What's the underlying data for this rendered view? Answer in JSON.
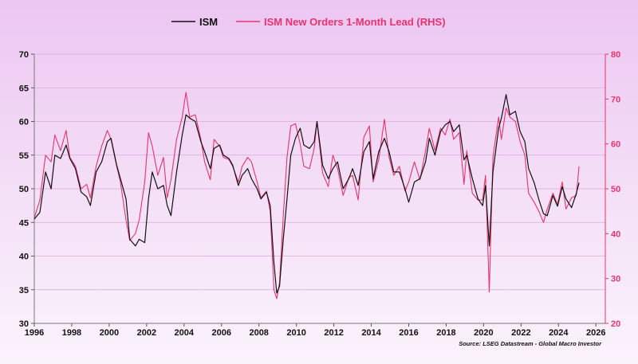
{
  "chart_data": {
    "type": "line",
    "title": "",
    "legend": {
      "position": "top-center"
    },
    "grid": true,
    "x_axis": {
      "range": [
        1996,
        2026.5
      ],
      "ticks": [
        "1996",
        "1998",
        "2000",
        "2002",
        "2004",
        "2006",
        "2008",
        "2010",
        "2012",
        "2014",
        "2016",
        "2018",
        "2020",
        "2022",
        "2024",
        "2026"
      ]
    },
    "y_left": {
      "range": [
        30,
        70
      ],
      "ticks": [
        "30",
        "35",
        "40",
        "45",
        "50",
        "55",
        "60",
        "65",
        "70"
      ],
      "color": "#111111"
    },
    "y_right": {
      "range": [
        20,
        80
      ],
      "ticks": [
        "20",
        "30",
        "40",
        "50",
        "60",
        "70",
        "80"
      ],
      "color": "#e8336d"
    },
    "series": [
      {
        "name": "ISM",
        "axis": "left",
        "color": "#111111",
        "points": [
          [
            1996.0,
            45.5
          ],
          [
            1996.3,
            46.5
          ],
          [
            1996.6,
            52.5
          ],
          [
            1996.9,
            50.0
          ],
          [
            1997.1,
            55.0
          ],
          [
            1997.4,
            54.5
          ],
          [
            1997.7,
            56.5
          ],
          [
            1997.9,
            54.5
          ],
          [
            1998.2,
            53.0
          ],
          [
            1998.5,
            49.5
          ],
          [
            1998.8,
            48.8
          ],
          [
            1999.0,
            47.5
          ],
          [
            1999.3,
            52.5
          ],
          [
            1999.6,
            54.0
          ],
          [
            1999.9,
            57.0
          ],
          [
            2000.1,
            57.5
          ],
          [
            2000.4,
            53.5
          ],
          [
            2000.6,
            51.5
          ],
          [
            2000.9,
            48.5
          ],
          [
            2001.1,
            42.5
          ],
          [
            2001.4,
            41.5
          ],
          [
            2001.6,
            42.5
          ],
          [
            2001.9,
            42.0
          ],
          [
            2002.1,
            48.5
          ],
          [
            2002.3,
            52.5
          ],
          [
            2002.6,
            50.0
          ],
          [
            2002.9,
            50.5
          ],
          [
            2003.1,
            47.5
          ],
          [
            2003.3,
            46.0
          ],
          [
            2003.6,
            52.5
          ],
          [
            2003.9,
            58.0
          ],
          [
            2004.1,
            61.0
          ],
          [
            2004.3,
            60.5
          ],
          [
            2004.6,
            60.0
          ],
          [
            2004.9,
            57.0
          ],
          [
            2005.1,
            55.5
          ],
          [
            2005.4,
            53.0
          ],
          [
            2005.6,
            56.0
          ],
          [
            2005.9,
            56.5
          ],
          [
            2006.1,
            55.0
          ],
          [
            2006.4,
            54.5
          ],
          [
            2006.6,
            53.5
          ],
          [
            2006.9,
            50.5
          ],
          [
            2007.1,
            52.0
          ],
          [
            2007.4,
            53.0
          ],
          [
            2007.6,
            51.5
          ],
          [
            2007.9,
            50.0
          ],
          [
            2008.1,
            48.5
          ],
          [
            2008.4,
            49.5
          ],
          [
            2008.6,
            47.5
          ],
          [
            2008.8,
            39.0
          ],
          [
            2008.95,
            34.5
          ],
          [
            2009.1,
            35.5
          ],
          [
            2009.3,
            42.5
          ],
          [
            2009.5,
            48.5
          ],
          [
            2009.7,
            55.0
          ],
          [
            2009.95,
            57.5
          ],
          [
            2010.2,
            59.0
          ],
          [
            2010.4,
            56.5
          ],
          [
            2010.7,
            56.0
          ],
          [
            2010.95,
            57.0
          ],
          [
            2011.1,
            60.0
          ],
          [
            2011.4,
            53.5
          ],
          [
            2011.7,
            51.5
          ],
          [
            2011.95,
            53.0
          ],
          [
            2012.2,
            54.0
          ],
          [
            2012.5,
            50.0
          ],
          [
            2012.8,
            51.5
          ],
          [
            2013.0,
            53.0
          ],
          [
            2013.3,
            50.5
          ],
          [
            2013.6,
            55.5
          ],
          [
            2013.9,
            57.0
          ],
          [
            2014.1,
            51.5
          ],
          [
            2014.4,
            55.5
          ],
          [
            2014.7,
            57.5
          ],
          [
            2014.95,
            55.5
          ],
          [
            2015.2,
            52.5
          ],
          [
            2015.5,
            52.5
          ],
          [
            2015.8,
            50.0
          ],
          [
            2016.0,
            48.0
          ],
          [
            2016.3,
            51.0
          ],
          [
            2016.6,
            51.5
          ],
          [
            2016.9,
            54.0
          ],
          [
            2017.1,
            57.5
          ],
          [
            2017.4,
            55.0
          ],
          [
            2017.7,
            58.5
          ],
          [
            2017.95,
            59.5
          ],
          [
            2018.2,
            60.0
          ],
          [
            2018.4,
            58.5
          ],
          [
            2018.7,
            59.5
          ],
          [
            2018.95,
            54.3
          ],
          [
            2019.1,
            55.0
          ],
          [
            2019.4,
            51.5
          ],
          [
            2019.7,
            48.5
          ],
          [
            2019.95,
            47.5
          ],
          [
            2020.1,
            50.5
          ],
          [
            2020.3,
            41.5
          ],
          [
            2020.5,
            52.5
          ],
          [
            2020.8,
            59.0
          ],
          [
            2020.95,
            60.5
          ],
          [
            2021.2,
            64.0
          ],
          [
            2021.4,
            61.0
          ],
          [
            2021.7,
            61.5
          ],
          [
            2021.95,
            58.5
          ],
          [
            2022.2,
            57.0
          ],
          [
            2022.4,
            53.0
          ],
          [
            2022.7,
            50.9
          ],
          [
            2022.95,
            48.4
          ],
          [
            2023.2,
            46.3
          ],
          [
            2023.4,
            46.0
          ],
          [
            2023.7,
            49.0
          ],
          [
            2023.95,
            47.4
          ],
          [
            2024.2,
            50.3
          ],
          [
            2024.4,
            48.5
          ],
          [
            2024.7,
            47.2
          ],
          [
            2024.95,
            49.3
          ],
          [
            2025.1,
            50.9
          ]
        ]
      },
      {
        "name": "ISM New Orders 1-Month Lead (RHS)",
        "axis": "right",
        "color": "#e8336d",
        "points": [
          [
            1996.0,
            43.5
          ],
          [
            1996.3,
            47.5
          ],
          [
            1996.6,
            57.5
          ],
          [
            1996.9,
            56.0
          ],
          [
            1997.1,
            62.0
          ],
          [
            1997.4,
            58.5
          ],
          [
            1997.7,
            63.0
          ],
          [
            1997.9,
            57.0
          ],
          [
            1998.2,
            55.0
          ],
          [
            1998.5,
            50.0
          ],
          [
            1998.8,
            51.0
          ],
          [
            1999.0,
            48.0
          ],
          [
            1999.3,
            55.0
          ],
          [
            1999.6,
            59.5
          ],
          [
            1999.9,
            63.0
          ],
          [
            2000.1,
            61.0
          ],
          [
            2000.4,
            55.0
          ],
          [
            2000.6,
            51.5
          ],
          [
            2000.9,
            43.0
          ],
          [
            2001.1,
            38.5
          ],
          [
            2001.4,
            40.0
          ],
          [
            2001.6,
            43.0
          ],
          [
            2001.9,
            51.5
          ],
          [
            2002.1,
            62.5
          ],
          [
            2002.3,
            59.5
          ],
          [
            2002.6,
            53.0
          ],
          [
            2002.9,
            57.0
          ],
          [
            2003.1,
            48.0
          ],
          [
            2003.3,
            52.0
          ],
          [
            2003.6,
            61.0
          ],
          [
            2003.9,
            66.0
          ],
          [
            2004.1,
            71.5
          ],
          [
            2004.3,
            66.0
          ],
          [
            2004.6,
            66.5
          ],
          [
            2004.9,
            61.0
          ],
          [
            2005.1,
            56.0
          ],
          [
            2005.4,
            52.0
          ],
          [
            2005.6,
            61.0
          ],
          [
            2005.9,
            59.5
          ],
          [
            2006.1,
            57.0
          ],
          [
            2006.4,
            56.5
          ],
          [
            2006.6,
            55.0
          ],
          [
            2006.9,
            51.5
          ],
          [
            2007.1,
            55.0
          ],
          [
            2007.4,
            57.0
          ],
          [
            2007.6,
            56.0
          ],
          [
            2007.9,
            51.5
          ],
          [
            2008.1,
            48.0
          ],
          [
            2008.4,
            49.5
          ],
          [
            2008.6,
            45.0
          ],
          [
            2008.8,
            27.5
          ],
          [
            2008.95,
            25.5
          ],
          [
            2009.1,
            29.0
          ],
          [
            2009.3,
            44.0
          ],
          [
            2009.5,
            57.0
          ],
          [
            2009.7,
            64.0
          ],
          [
            2009.95,
            64.5
          ],
          [
            2010.2,
            60.0
          ],
          [
            2010.4,
            55.0
          ],
          [
            2010.7,
            54.5
          ],
          [
            2010.95,
            59.0
          ],
          [
            2011.1,
            65.0
          ],
          [
            2011.4,
            53.5
          ],
          [
            2011.7,
            50.5
          ],
          [
            2011.95,
            57.5
          ],
          [
            2012.2,
            54.5
          ],
          [
            2012.5,
            48.5
          ],
          [
            2012.8,
            52.5
          ],
          [
            2013.0,
            53.0
          ],
          [
            2013.3,
            47.5
          ],
          [
            2013.6,
            61.5
          ],
          [
            2013.9,
            64.0
          ],
          [
            2014.1,
            51.5
          ],
          [
            2014.4,
            56.5
          ],
          [
            2014.7,
            65.5
          ],
          [
            2014.95,
            57.0
          ],
          [
            2015.2,
            53.0
          ],
          [
            2015.5,
            55.0
          ],
          [
            2015.8,
            49.5
          ],
          [
            2016.0,
            51.5
          ],
          [
            2016.3,
            56.0
          ],
          [
            2016.6,
            52.0
          ],
          [
            2016.9,
            58.5
          ],
          [
            2017.1,
            63.5
          ],
          [
            2017.4,
            58.5
          ],
          [
            2017.7,
            63.5
          ],
          [
            2017.95,
            62.0
          ],
          [
            2018.2,
            65.5
          ],
          [
            2018.4,
            61.0
          ],
          [
            2018.7,
            62.5
          ],
          [
            2018.95,
            51.0
          ],
          [
            2019.1,
            58.5
          ],
          [
            2019.4,
            49.0
          ],
          [
            2019.7,
            47.5
          ],
          [
            2019.95,
            47.5
          ],
          [
            2020.1,
            53.0
          ],
          [
            2020.3,
            27.0
          ],
          [
            2020.5,
            57.0
          ],
          [
            2020.8,
            66.0
          ],
          [
            2020.95,
            61.0
          ],
          [
            2021.2,
            68.0
          ],
          [
            2021.4,
            66.0
          ],
          [
            2021.7,
            65.0
          ],
          [
            2021.95,
            60.5
          ],
          [
            2022.2,
            57.5
          ],
          [
            2022.4,
            49.0
          ],
          [
            2022.7,
            47.0
          ],
          [
            2022.95,
            45.0
          ],
          [
            2023.2,
            42.5
          ],
          [
            2023.4,
            45.5
          ],
          [
            2023.7,
            49.0
          ],
          [
            2023.95,
            46.5
          ],
          [
            2024.2,
            51.5
          ],
          [
            2024.4,
            45.5
          ],
          [
            2024.7,
            48.0
          ],
          [
            2024.95,
            48.5
          ],
          [
            2025.1,
            55.0
          ]
        ]
      }
    ],
    "source": "Source: LSEG Datastream - Global Macro Investor"
  }
}
